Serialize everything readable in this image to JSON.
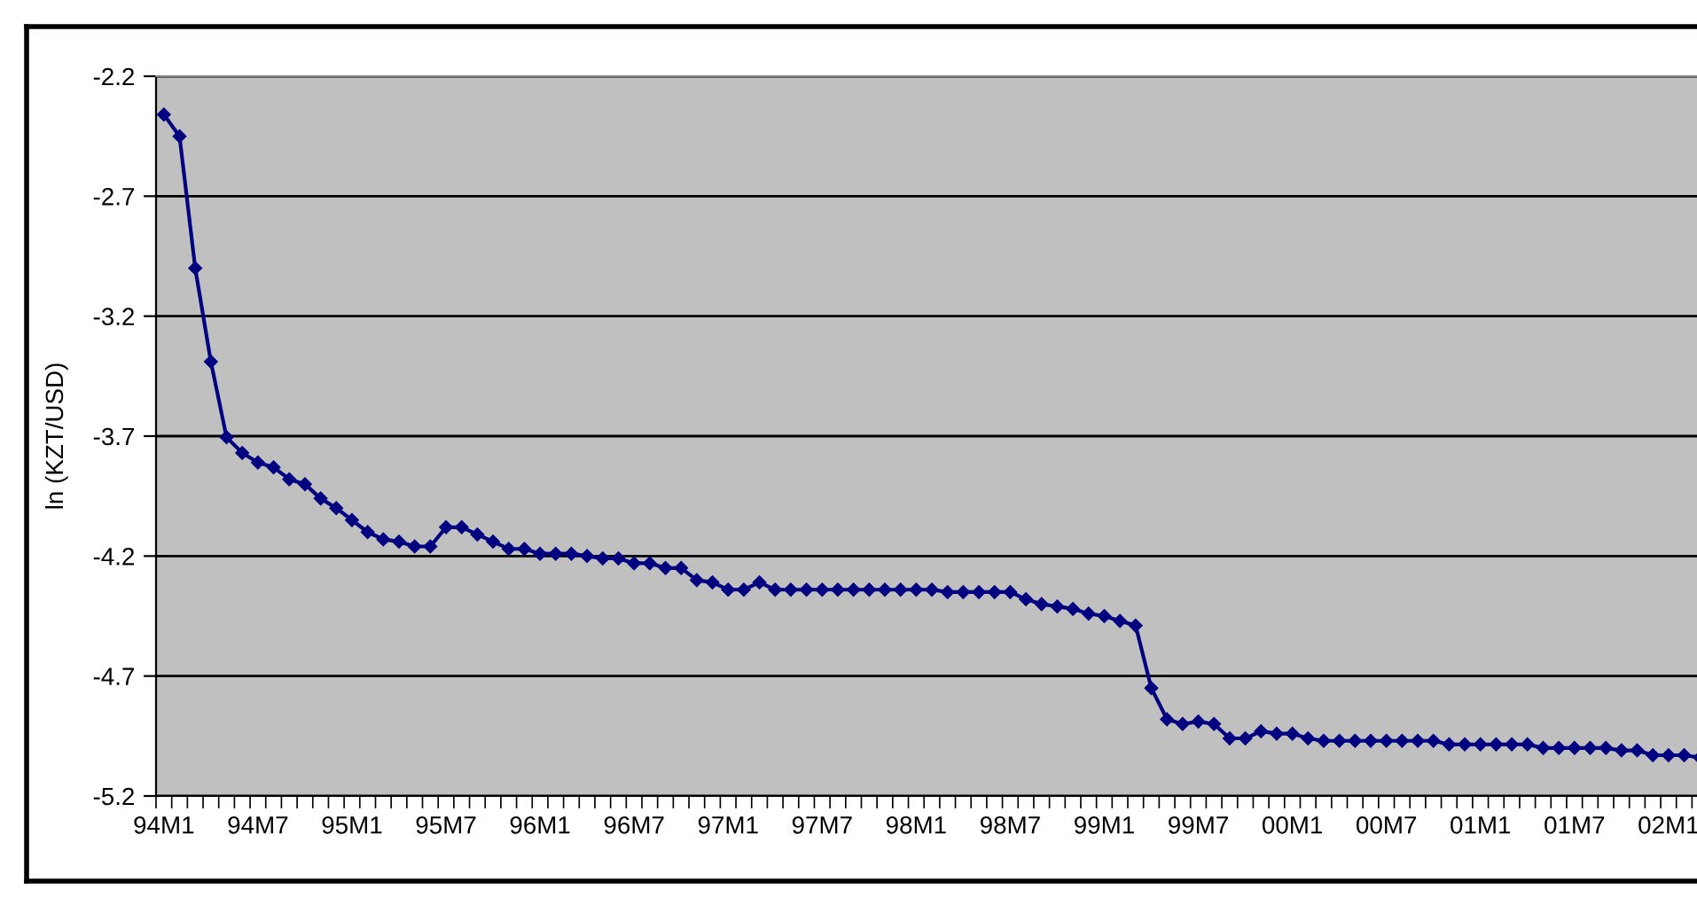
{
  "chart_data": {
    "type": "line",
    "ylabel": "ln (KZT/USD)",
    "categories": [
      "94M1",
      null,
      null,
      null,
      null,
      null,
      "94M7",
      null,
      null,
      null,
      null,
      null,
      "95M1",
      null,
      null,
      null,
      null,
      null,
      "95M7",
      null,
      null,
      null,
      null,
      null,
      "96M1",
      null,
      null,
      null,
      null,
      null,
      "96M7",
      null,
      null,
      null,
      null,
      null,
      "97M1",
      null,
      null,
      null,
      null,
      null,
      "97M7",
      null,
      null,
      null,
      null,
      null,
      "98M1",
      null,
      null,
      null,
      null,
      null,
      "98M7",
      null,
      null,
      null,
      null,
      null,
      "99M1",
      null,
      null,
      null,
      null,
      null,
      "99M7",
      null,
      null,
      null,
      null,
      null,
      "00M1",
      null,
      null,
      null,
      null,
      null,
      "00M7",
      null,
      null,
      null,
      null,
      null,
      "01M1",
      null,
      null,
      null,
      null,
      null,
      "01M7",
      null,
      null,
      null,
      null,
      null,
      "02M1",
      null,
      null
    ],
    "series": [
      {
        "color": "#000080",
        "values": [
          -2.36,
          -2.45,
          -3.0,
          -3.39,
          -3.705,
          -3.77,
          -3.81,
          -3.83,
          -3.88,
          -3.9,
          -3.96,
          -4.0,
          -4.05,
          -4.1,
          -4.13,
          -4.14,
          -4.16,
          -4.16,
          -4.08,
          -4.08,
          -4.11,
          -4.14,
          -4.17,
          -4.17,
          -4.19,
          -4.19,
          -4.19,
          -4.2,
          -4.21,
          -4.21,
          -4.23,
          -4.23,
          -4.25,
          -4.25,
          -4.3,
          -4.31,
          -4.34,
          -4.34,
          -4.31,
          -4.34,
          -4.34,
          -4.34,
          -4.34,
          -4.34,
          -4.34,
          -4.34,
          -4.34,
          -4.34,
          -4.34,
          -4.34,
          -4.35,
          -4.35,
          -4.35,
          -4.35,
          -4.35,
          -4.38,
          -4.4,
          -4.41,
          -4.42,
          -4.44,
          -4.45,
          -4.47,
          -4.49,
          -4.75,
          -4.88,
          -4.9,
          -4.89,
          -4.9,
          -4.96,
          -4.96,
          -4.93,
          -4.94,
          -4.94,
          -4.96,
          -4.97,
          -4.97,
          -4.97,
          -4.97,
          -4.97,
          -4.97,
          -4.97,
          -4.97,
          -4.985,
          -4.985,
          -4.985,
          -4.985,
          -4.985,
          -4.985,
          -5.0,
          -5.0,
          -5.0,
          -5.0,
          -5.0,
          -5.01,
          -5.01,
          -5.03,
          -5.03,
          -5.03,
          -5.04
        ]
      }
    ],
    "ylim": [
      -5.2,
      -2.2
    ],
    "yticks": [
      -2.2,
      -2.7,
      -3.2,
      -3.7,
      -4.2,
      -4.7,
      -5.2
    ],
    "grid": "y",
    "legend": false,
    "marker": "diamond",
    "line_style": "solid"
  }
}
